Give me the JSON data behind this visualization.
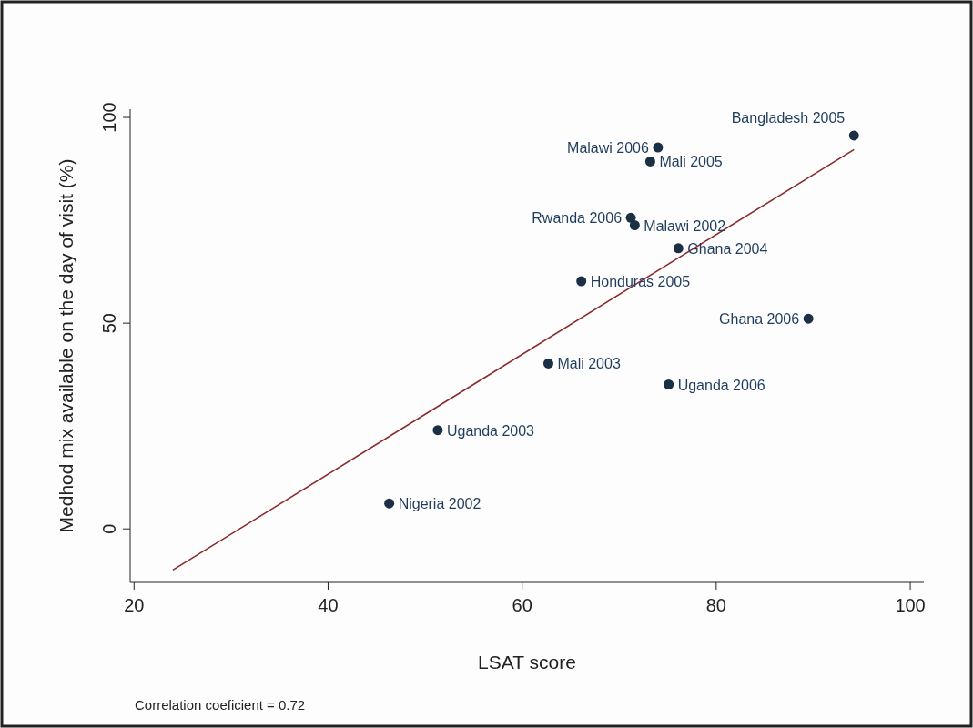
{
  "chart_data": {
    "type": "scatter",
    "xlabel": "LSAT score",
    "ylabel": "Medhod mix available on the day of visit (%)",
    "xlim": [
      19.6,
      101.4
    ],
    "ylim": [
      -13,
      102
    ],
    "xticks": [
      20,
      40,
      60,
      80,
      100
    ],
    "yticks": [
      0,
      50,
      100
    ],
    "grid": false,
    "series": [
      {
        "marker": "circle",
        "color": "#1b2f45",
        "x": [
          94.2,
          74.0,
          73.2,
          71.2,
          71.6,
          76.1,
          66.1,
          89.5,
          62.7,
          75.1,
          51.3,
          46.3
        ],
        "values": [
          95.6,
          92.7,
          89.3,
          75.6,
          73.8,
          68.2,
          60.2,
          51.1,
          40.2,
          35.1,
          24.0,
          6.2
        ]
      },
      {
        "type": "line",
        "color": "#8b2a2a",
        "x": [
          24.0,
          94.2
        ],
        "values": [
          -10,
          92.2
        ]
      }
    ],
    "annotations": [
      {
        "text": "Bangladesh 2005",
        "x": 94.2,
        "y": 95.6
      },
      {
        "text": "Malawi 2006",
        "x": 74.0,
        "y": 92.7
      },
      {
        "text": "Mali 2005",
        "x": 73.2,
        "y": 89.3
      },
      {
        "text": "Rwanda 2006",
        "x": 71.2,
        "y": 75.6
      },
      {
        "text": "Malawi 2002",
        "x": 71.6,
        "y": 73.8
      },
      {
        "text": "Ghana 2004",
        "x": 76.1,
        "y": 68.2
      },
      {
        "text": "Honduras 2005",
        "x": 66.1,
        "y": 60.2
      },
      {
        "text": "Ghana 2006",
        "x": 89.5,
        "y": 51.1
      },
      {
        "text": "Mali 2003",
        "x": 62.7,
        "y": 40.2
      },
      {
        "text": "Uganda 2006",
        "x": 75.1,
        "y": 35.1
      },
      {
        "text": "Uganda 2003",
        "x": 51.3,
        "y": 24.0
      },
      {
        "text": "Nigeria 2002",
        "x": 46.3,
        "y": 6.2
      },
      "Correlation coeficient = 0.72"
    ]
  }
}
